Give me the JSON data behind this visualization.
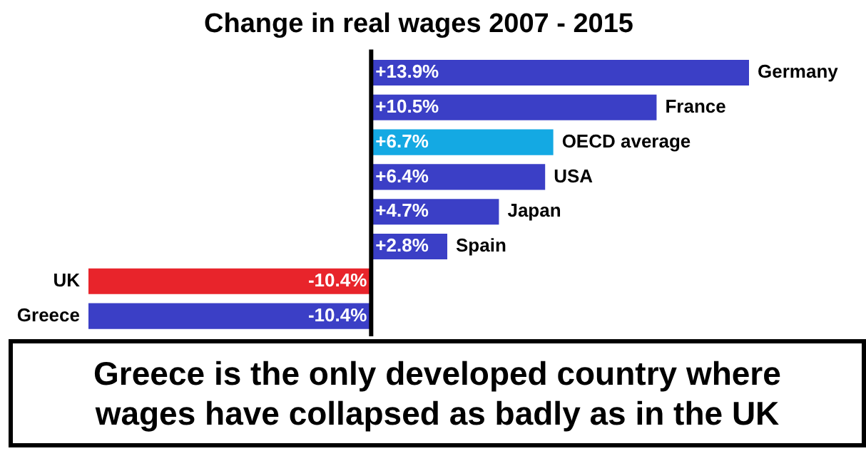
{
  "chart_data": {
    "type": "bar",
    "orientation": "horizontal",
    "title": "Change in real wages 2007 - 2015",
    "categories": [
      "Germany",
      "France",
      "OECD average",
      "USA",
      "Japan",
      "Spain",
      "UK",
      "Greece"
    ],
    "values": [
      13.9,
      10.5,
      6.7,
      6.4,
      4.7,
      2.8,
      -10.4,
      -10.4
    ],
    "colors": [
      "#3b3fc6",
      "#3b3fc6",
      "#14a9e3",
      "#3b3fc6",
      "#3b3fc6",
      "#3b3fc6",
      "#e8242b",
      "#3b3fc6"
    ],
    "value_labels": [
      "+13.9%",
      "+10.5%",
      "+6.7%",
      "+6.4%",
      "+4.7%",
      "+2.8%",
      "-10.4%",
      "-10.4%"
    ],
    "tick_labels": false,
    "annotations": [
      "Greece is the only developed country where wages have collapsed as badly as in the UK"
    ]
  }
}
